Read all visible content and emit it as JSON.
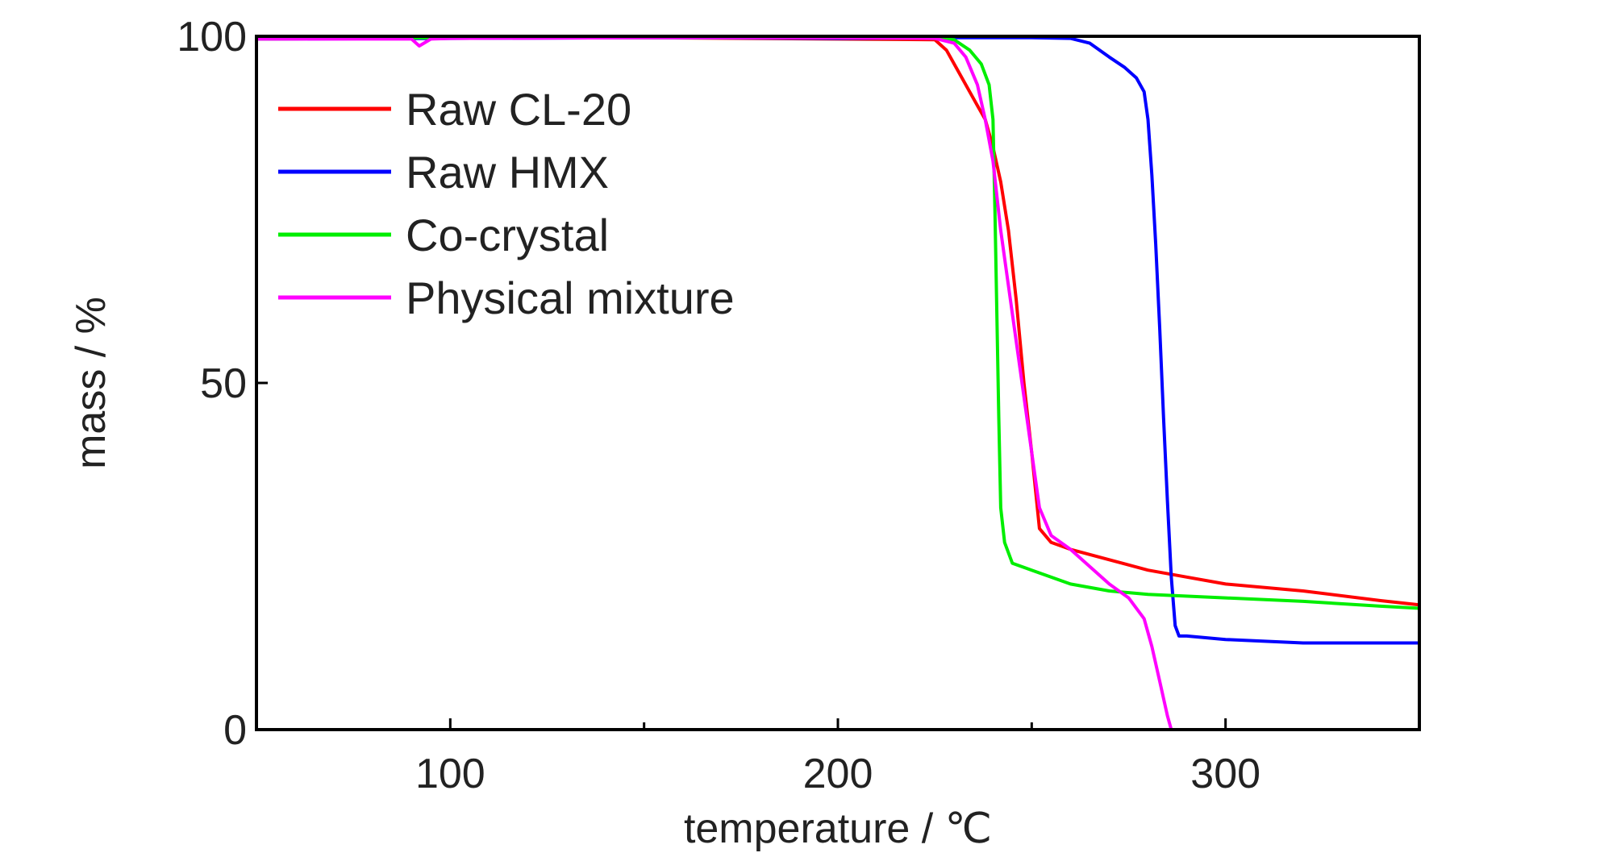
{
  "chart_data": {
    "type": "line",
    "title": "",
    "xlabel": "temperature / ℃",
    "ylabel": "mass / %",
    "xlim": [
      50,
      350
    ],
    "ylim": [
      0,
      100
    ],
    "x_ticks": [
      100,
      200,
      300
    ],
    "x_tick_labels": [
      "100",
      "200",
      "300"
    ],
    "x_minor_ticks": [
      150,
      250
    ],
    "y_ticks": [
      0,
      50,
      100
    ],
    "y_tick_labels": [
      "0",
      "50",
      "100"
    ],
    "grid": false,
    "legend_position": "upper-left",
    "series": [
      {
        "name": "Raw CL-20",
        "color": "#ff0000",
        "points": [
          [
            50,
            99.6
          ],
          [
            100,
            99.8
          ],
          [
            150,
            99.8
          ],
          [
            200,
            99.6
          ],
          [
            225,
            99.5
          ],
          [
            228,
            98
          ],
          [
            231,
            95
          ],
          [
            234,
            92
          ],
          [
            236,
            90
          ],
          [
            238,
            88
          ],
          [
            240,
            84
          ],
          [
            242,
            79
          ],
          [
            244,
            72
          ],
          [
            246,
            62
          ],
          [
            248,
            50
          ],
          [
            250,
            40
          ],
          [
            252,
            29
          ],
          [
            255,
            27
          ],
          [
            260,
            26
          ],
          [
            270,
            24.5
          ],
          [
            280,
            23
          ],
          [
            290,
            22
          ],
          [
            300,
            21
          ],
          [
            320,
            20
          ],
          [
            340,
            18.6
          ],
          [
            350,
            18
          ]
        ]
      },
      {
        "name": "Raw HMX",
        "color": "#0000ff",
        "points": [
          [
            50,
            99.6
          ],
          [
            100,
            99.7
          ],
          [
            150,
            99.8
          ],
          [
            200,
            99.7
          ],
          [
            230,
            99.8
          ],
          [
            250,
            99.8
          ],
          [
            260,
            99.7
          ],
          [
            265,
            99
          ],
          [
            270,
            97
          ],
          [
            274,
            95.5
          ],
          [
            277,
            94
          ],
          [
            279,
            92
          ],
          [
            280,
            88
          ],
          [
            281,
            80
          ],
          [
            282,
            70
          ],
          [
            283,
            58
          ],
          [
            284,
            45
          ],
          [
            285,
            33
          ],
          [
            286,
            22
          ],
          [
            287,
            15
          ],
          [
            288,
            13.5
          ],
          [
            290,
            13.5
          ],
          [
            300,
            13
          ],
          [
            320,
            12.5
          ],
          [
            340,
            12.5
          ],
          [
            350,
            12.5
          ]
        ]
      },
      {
        "name": "Co-crystal",
        "color": "#00ee00",
        "points": [
          [
            50,
            99.6
          ],
          [
            100,
            99.8
          ],
          [
            150,
            99.8
          ],
          [
            200,
            99.8
          ],
          [
            225,
            99.7
          ],
          [
            230,
            99.5
          ],
          [
            234,
            98
          ],
          [
            237,
            96
          ],
          [
            239,
            93
          ],
          [
            240,
            88
          ],
          [
            240.5,
            75
          ],
          [
            241,
            60
          ],
          [
            241.5,
            45
          ],
          [
            242,
            32
          ],
          [
            243,
            27
          ],
          [
            245,
            24
          ],
          [
            250,
            23
          ],
          [
            260,
            21
          ],
          [
            270,
            20
          ],
          [
            280,
            19.5
          ],
          [
            300,
            19
          ],
          [
            320,
            18.5
          ],
          [
            340,
            17.8
          ],
          [
            350,
            17.5
          ]
        ]
      },
      {
        "name": "Physical mixture",
        "color": "#ff00ff",
        "points": [
          [
            50,
            99.6
          ],
          [
            90,
            99.6
          ],
          [
            92,
            98.6
          ],
          [
            95,
            99.6
          ],
          [
            100,
            99.7
          ],
          [
            150,
            99.8
          ],
          [
            200,
            99.8
          ],
          [
            225,
            99.7
          ],
          [
            230,
            99
          ],
          [
            233,
            97
          ],
          [
            236,
            93
          ],
          [
            238,
            88
          ],
          [
            240,
            82
          ],
          [
            242,
            72
          ],
          [
            244,
            64
          ],
          [
            246,
            56
          ],
          [
            248,
            48
          ],
          [
            250,
            40
          ],
          [
            252,
            32
          ],
          [
            255,
            28
          ],
          [
            260,
            26
          ],
          [
            270,
            21
          ],
          [
            275,
            19
          ],
          [
            279,
            16
          ],
          [
            281,
            12
          ],
          [
            283,
            7
          ],
          [
            285,
            2
          ],
          [
            286,
            0
          ],
          [
            300,
            0
          ],
          [
            320,
            0
          ],
          [
            350,
            0
          ]
        ]
      }
    ]
  }
}
